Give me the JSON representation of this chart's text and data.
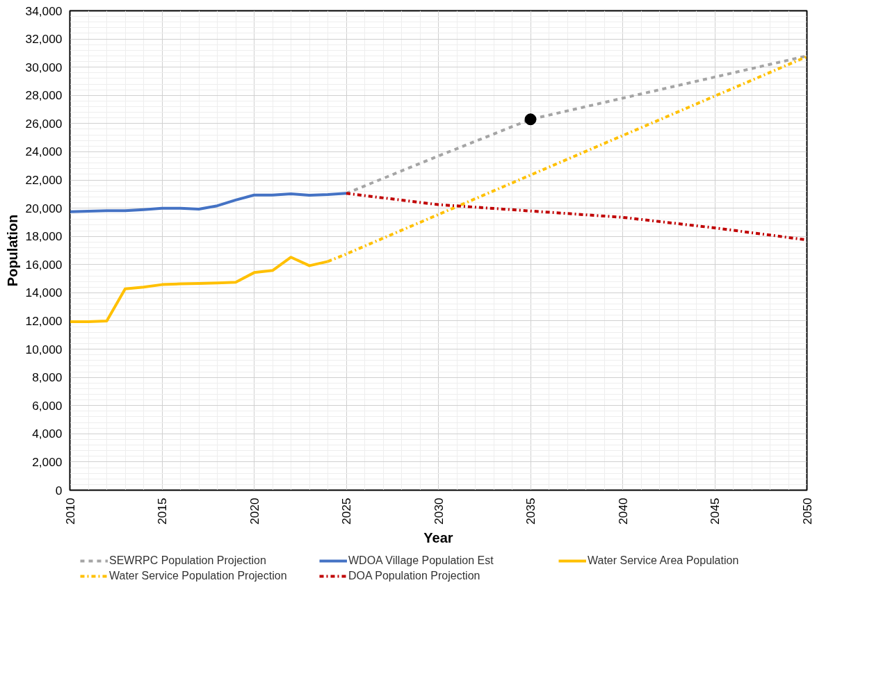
{
  "chart_data": {
    "type": "line",
    "xlabel": "Year",
    "ylabel": "Population",
    "xlim": [
      2010,
      2050
    ],
    "xticks": [
      2010,
      2015,
      2020,
      2025,
      2030,
      2035,
      2040,
      2045,
      2050
    ],
    "ylim": [
      0,
      34000
    ],
    "yticks": [
      0,
      {
        "value": 2000,
        "label": "2,000"
      },
      {
        "value": 4000,
        "label": "4,000"
      },
      {
        "value": 6000,
        "label": "6,000"
      },
      {
        "value": 8000,
        "label": "8,000"
      },
      {
        "value": 10000,
        "label": "10,000"
      },
      {
        "value": 12000,
        "label": "12,000"
      },
      {
        "value": 14000,
        "label": "14,000"
      },
      {
        "value": 16000,
        "label": "16,000"
      },
      {
        "value": 18000,
        "label": "18,000"
      },
      {
        "value": 20000,
        "label": "20,000"
      },
      {
        "value": 22000,
        "label": "22,000"
      },
      {
        "value": 24000,
        "label": "24,000"
      },
      {
        "value": 26000,
        "label": "26,000"
      },
      {
        "value": 28000,
        "label": "28,000"
      },
      {
        "value": 30000,
        "label": "30,000"
      },
      {
        "value": 32000,
        "label": "32,000"
      },
      {
        "value": 34000,
        "label": "34,000"
      }
    ],
    "grid": true,
    "legend": "bottom",
    "marker": "none",
    "series": [
      {
        "name": "SEWRPC Population Projection",
        "color": "#a5a5a5",
        "line_style": "dashed",
        "x": [
          2025,
          2030,
          2035,
          2040,
          2045,
          2050
        ],
        "values": [
          21050,
          23700,
          26300,
          27800,
          29300,
          30800
        ]
      },
      {
        "name": "WDOA Village Population Est",
        "color": "#4472c4",
        "line_style": "solid",
        "x": [
          2010,
          2011,
          2012,
          2013,
          2014,
          2015,
          2016,
          2017,
          2018,
          2019,
          2020,
          2021,
          2022,
          2023,
          2024,
          2025
        ],
        "values": [
          19750,
          19780,
          19820,
          19820,
          19900,
          19990,
          19990,
          19930,
          20170,
          20580,
          20930,
          20930,
          21020,
          20920,
          20970,
          21050
        ]
      },
      {
        "name": "Water Service Area Population",
        "color": "#ffc000",
        "line_style": "solid",
        "x": [
          2010,
          2011,
          2012,
          2013,
          2014,
          2015,
          2016,
          2017,
          2018,
          2019,
          2020,
          2021,
          2022,
          2023,
          2024
        ],
        "values": [
          11950,
          11950,
          12000,
          14280,
          14400,
          14580,
          14630,
          14660,
          14700,
          14750,
          15430,
          15580,
          16520,
          15920,
          16220
        ]
      },
      {
        "name": "Water Service Population Projection",
        "color": "#ffc000",
        "line_style": "dashdot",
        "x": [
          2024,
          2025,
          2030,
          2035,
          2040,
          2045,
          2050
        ],
        "values": [
          16220,
          16750,
          19550,
          22350,
          25150,
          27950,
          30750
        ]
      },
      {
        "name": "DOA Population Projection",
        "color": "#c00000",
        "line_style": "dashdot",
        "x": [
          2025,
          2030,
          2035,
          2040,
          2045,
          2050
        ],
        "values": [
          21050,
          20250,
          19800,
          19350,
          18600,
          17750
        ]
      },
      {
        "type": "scatter",
        "marker": "circle",
        "color": "#000000",
        "x": [
          2035
        ],
        "values": [
          26300
        ]
      }
    ]
  }
}
